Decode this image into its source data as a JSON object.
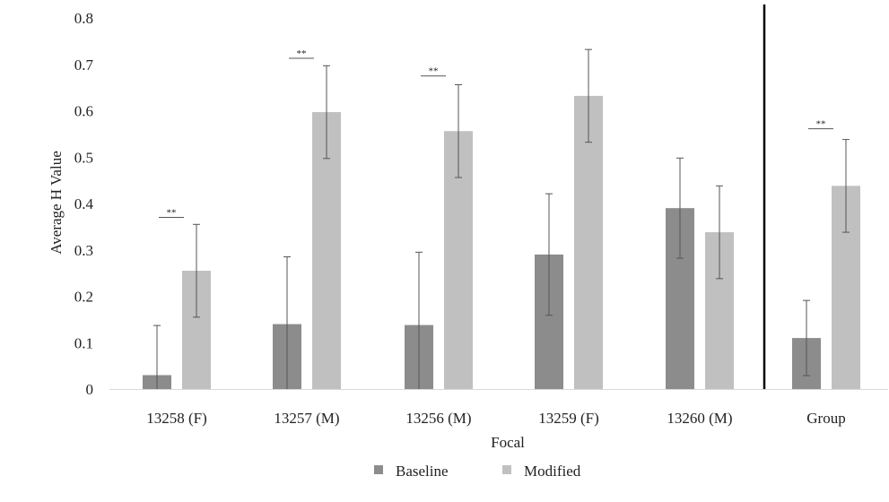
{
  "chart_data": {
    "type": "bar",
    "title": "",
    "xlabel": "Focal",
    "ylabel": "Average H Value",
    "ylim": [
      0,
      0.8
    ],
    "yticks": [
      "0",
      "0.1",
      "0.2",
      "0.3",
      "0.4",
      "0.5",
      "0.6",
      "0.7",
      "0.8"
    ],
    "grid": false,
    "legend_position": "bottom",
    "categories": [
      "13258 (F)",
      "13257 (M)",
      "13256 (M)",
      "13259 (F)",
      "13260 (M)",
      "Group"
    ],
    "series": [
      {
        "name": "Baseline",
        "color": "#8c8c8c",
        "values": [
          0.03,
          0.14,
          0.138,
          0.29,
          0.39,
          0.11
        ],
        "errors": [
          0.107,
          0.145,
          0.157,
          0.131,
          0.108,
          0.081
        ]
      },
      {
        "name": "Modified",
        "color": "#c0c0c0",
        "values": [
          0.255,
          0.597,
          0.556,
          0.632,
          0.338,
          0.438
        ],
        "errors": [
          0.1,
          0.1,
          0.1,
          0.1,
          0.1,
          0.1
        ]
      }
    ],
    "significance": [
      {
        "category": "13258 (F)",
        "label": "**",
        "y": 0.37
      },
      {
        "category": "13257 (M)",
        "label": "**",
        "y": 0.713
      },
      {
        "category": "13256 (M)",
        "label": "**",
        "y": 0.675
      },
      {
        "category": "Group",
        "label": "**",
        "y": 0.561
      }
    ],
    "separator_before": "Group"
  }
}
